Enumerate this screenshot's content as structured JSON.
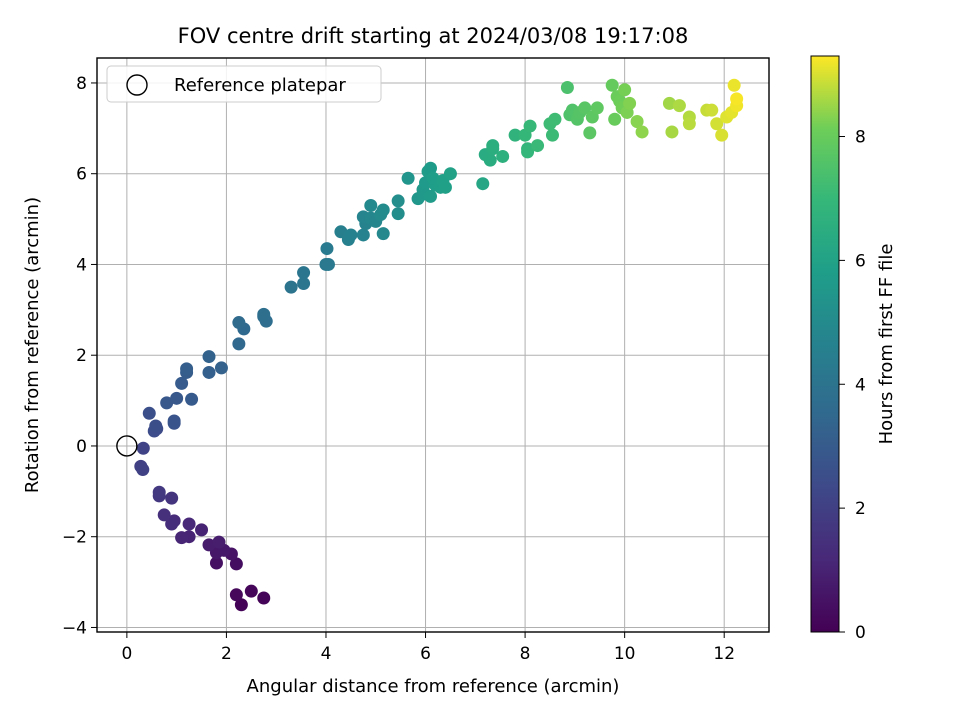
{
  "chart_data": {
    "type": "scatter",
    "title": "FOV centre drift starting at 2024/03/08 19:17:08",
    "xlabel": "Angular distance from reference (arcmin)",
    "ylabel": "Rotation from reference (arcmin)",
    "colorbar_label": "Hours from first FF file",
    "xlim": [
      -0.6,
      12.9
    ],
    "ylim": [
      -4.1,
      8.55
    ],
    "x_ticks": [
      0,
      2,
      4,
      6,
      8,
      10,
      12
    ],
    "y_ticks": [
      -4,
      -2,
      0,
      2,
      4,
      6,
      8
    ],
    "colorbar_range": [
      0,
      9.3
    ],
    "colorbar_ticks": [
      0,
      2,
      4,
      6,
      8
    ],
    "colormap": "viridis",
    "grid": true,
    "legend_placement": "top-left",
    "reference": {
      "name": "Reference platepar",
      "x": 0,
      "y": 0
    },
    "points": [
      {
        "x": 2.3,
        "y": -3.5,
        "t": 0.05
      },
      {
        "x": 2.75,
        "y": -3.35,
        "t": 0.1
      },
      {
        "x": 2.5,
        "y": -3.2,
        "t": 0.15
      },
      {
        "x": 2.2,
        "y": -3.28,
        "t": 0.2
      },
      {
        "x": 2.2,
        "y": -2.6,
        "t": 0.35
      },
      {
        "x": 1.8,
        "y": -2.58,
        "t": 0.45
      },
      {
        "x": 2.1,
        "y": -2.38,
        "t": 0.55
      },
      {
        "x": 1.8,
        "y": -2.35,
        "t": 0.65
      },
      {
        "x": 1.95,
        "y": -2.3,
        "t": 0.7
      },
      {
        "x": 1.65,
        "y": -2.18,
        "t": 0.8
      },
      {
        "x": 1.85,
        "y": -2.12,
        "t": 0.85
      },
      {
        "x": 1.5,
        "y": -1.85,
        "t": 1.0
      },
      {
        "x": 1.25,
        "y": -2.0,
        "t": 1.05
      },
      {
        "x": 1.1,
        "y": -2.02,
        "t": 1.1
      },
      {
        "x": 1.25,
        "y": -1.72,
        "t": 1.2
      },
      {
        "x": 0.95,
        "y": -1.65,
        "t": 1.3
      },
      {
        "x": 0.9,
        "y": -1.72,
        "t": 1.35
      },
      {
        "x": 0.75,
        "y": -1.52,
        "t": 1.45
      },
      {
        "x": 0.9,
        "y": -1.15,
        "t": 1.6
      },
      {
        "x": 0.65,
        "y": -1.1,
        "t": 1.7
      },
      {
        "x": 0.65,
        "y": -1.02,
        "t": 1.75
      },
      {
        "x": 0.28,
        "y": -0.45,
        "t": 2.0
      },
      {
        "x": 0.32,
        "y": -0.52,
        "t": 2.05
      },
      {
        "x": 0.33,
        "y": -0.05,
        "t": 2.15
      },
      {
        "x": 0.6,
        "y": 0.38,
        "t": 2.4
      },
      {
        "x": 0.55,
        "y": 0.33,
        "t": 2.45
      },
      {
        "x": 0.58,
        "y": 0.44,
        "t": 2.5
      },
      {
        "x": 0.45,
        "y": 0.72,
        "t": 2.55
      },
      {
        "x": 0.95,
        "y": 0.5,
        "t": 2.7
      },
      {
        "x": 0.95,
        "y": 0.55,
        "t": 2.75
      },
      {
        "x": 0.8,
        "y": 0.95,
        "t": 2.85
      },
      {
        "x": 1.0,
        "y": 1.05,
        "t": 2.9
      },
      {
        "x": 1.3,
        "y": 1.03,
        "t": 2.95
      },
      {
        "x": 1.1,
        "y": 1.38,
        "t": 3.0
      },
      {
        "x": 1.2,
        "y": 1.62,
        "t": 3.05
      },
      {
        "x": 1.2,
        "y": 1.7,
        "t": 3.1
      },
      {
        "x": 1.65,
        "y": 1.62,
        "t": 3.2
      },
      {
        "x": 1.9,
        "y": 1.72,
        "t": 3.25
      },
      {
        "x": 1.65,
        "y": 1.97,
        "t": 3.3
      },
      {
        "x": 2.25,
        "y": 2.25,
        "t": 3.5
      },
      {
        "x": 2.35,
        "y": 2.58,
        "t": 3.55
      },
      {
        "x": 2.25,
        "y": 2.72,
        "t": 3.6
      },
      {
        "x": 2.75,
        "y": 2.85,
        "t": 3.7
      },
      {
        "x": 2.8,
        "y": 2.75,
        "t": 3.75
      },
      {
        "x": 2.75,
        "y": 2.9,
        "t": 3.78
      },
      {
        "x": 3.3,
        "y": 3.5,
        "t": 4.0
      },
      {
        "x": 3.55,
        "y": 3.58,
        "t": 4.05
      },
      {
        "x": 3.55,
        "y": 3.82,
        "t": 4.1
      },
      {
        "x": 4.0,
        "y": 4.0,
        "t": 4.2
      },
      {
        "x": 4.05,
        "y": 4.0,
        "t": 4.25
      },
      {
        "x": 4.02,
        "y": 4.35,
        "t": 4.3
      },
      {
        "x": 4.3,
        "y": 4.72,
        "t": 4.5
      },
      {
        "x": 4.45,
        "y": 4.55,
        "t": 4.55
      },
      {
        "x": 4.5,
        "y": 4.65,
        "t": 4.6
      },
      {
        "x": 4.75,
        "y": 4.65,
        "t": 4.65
      },
      {
        "x": 4.8,
        "y": 4.9,
        "t": 4.7
      },
      {
        "x": 4.75,
        "y": 5.05,
        "t": 4.75
      },
      {
        "x": 4.9,
        "y": 5.02,
        "t": 4.8
      },
      {
        "x": 5.0,
        "y": 4.95,
        "t": 4.85
      },
      {
        "x": 5.15,
        "y": 4.68,
        "t": 4.9
      },
      {
        "x": 4.9,
        "y": 5.3,
        "t": 4.95
      },
      {
        "x": 5.1,
        "y": 5.1,
        "t": 5.0
      },
      {
        "x": 5.15,
        "y": 5.2,
        "t": 5.02
      },
      {
        "x": 5.45,
        "y": 5.12,
        "t": 5.1
      },
      {
        "x": 5.45,
        "y": 5.4,
        "t": 5.15
      },
      {
        "x": 5.65,
        "y": 5.9,
        "t": 5.4
      },
      {
        "x": 5.85,
        "y": 5.45,
        "t": 5.5
      },
      {
        "x": 5.95,
        "y": 5.65,
        "t": 5.55
      },
      {
        "x": 5.95,
        "y": 5.55,
        "t": 5.6
      },
      {
        "x": 6.0,
        "y": 5.8,
        "t": 5.65
      },
      {
        "x": 6.1,
        "y": 5.5,
        "t": 5.7
      },
      {
        "x": 6.05,
        "y": 6.05,
        "t": 5.72
      },
      {
        "x": 6.1,
        "y": 6.12,
        "t": 5.75
      },
      {
        "x": 6.2,
        "y": 5.75,
        "t": 5.8
      },
      {
        "x": 6.15,
        "y": 5.9,
        "t": 5.82
      },
      {
        "x": 6.3,
        "y": 5.7,
        "t": 5.85
      },
      {
        "x": 6.35,
        "y": 5.85,
        "t": 5.9
      },
      {
        "x": 6.4,
        "y": 5.7,
        "t": 5.92
      },
      {
        "x": 6.5,
        "y": 6.0,
        "t": 5.95
      },
      {
        "x": 7.15,
        "y": 5.78,
        "t": 6.2
      },
      {
        "x": 7.2,
        "y": 6.42,
        "t": 6.4
      },
      {
        "x": 7.3,
        "y": 6.3,
        "t": 6.45
      },
      {
        "x": 7.35,
        "y": 6.55,
        "t": 6.5
      },
      {
        "x": 7.35,
        "y": 6.62,
        "t": 6.55
      },
      {
        "x": 7.55,
        "y": 6.38,
        "t": 6.6
      },
      {
        "x": 7.8,
        "y": 6.85,
        "t": 6.75
      },
      {
        "x": 8.05,
        "y": 6.55,
        "t": 6.85
      },
      {
        "x": 8.05,
        "y": 6.48,
        "t": 6.9
      },
      {
        "x": 8.0,
        "y": 6.85,
        "t": 6.95
      },
      {
        "x": 8.1,
        "y": 7.05,
        "t": 7.0
      },
      {
        "x": 8.25,
        "y": 6.62,
        "t": 7.05
      },
      {
        "x": 8.55,
        "y": 6.85,
        "t": 7.1
      },
      {
        "x": 8.5,
        "y": 7.1,
        "t": 7.15
      },
      {
        "x": 8.6,
        "y": 7.2,
        "t": 7.2
      },
      {
        "x": 8.85,
        "y": 7.9,
        "t": 7.45
      },
      {
        "x": 8.9,
        "y": 7.3,
        "t": 7.5
      },
      {
        "x": 8.95,
        "y": 7.4,
        "t": 7.55
      },
      {
        "x": 9.05,
        "y": 7.2,
        "t": 7.6
      },
      {
        "x": 9.1,
        "y": 7.35,
        "t": 7.65
      },
      {
        "x": 9.2,
        "y": 7.45,
        "t": 7.7
      },
      {
        "x": 9.3,
        "y": 6.9,
        "t": 7.75
      },
      {
        "x": 9.35,
        "y": 7.25,
        "t": 7.8
      },
      {
        "x": 9.45,
        "y": 7.45,
        "t": 7.85
      },
      {
        "x": 9.75,
        "y": 7.95,
        "t": 7.95
      },
      {
        "x": 9.8,
        "y": 7.2,
        "t": 8.0
      },
      {
        "x": 9.85,
        "y": 7.7,
        "t": 8.05
      },
      {
        "x": 9.9,
        "y": 7.6,
        "t": 8.1
      },
      {
        "x": 9.95,
        "y": 7.45,
        "t": 8.15
      },
      {
        "x": 10.0,
        "y": 7.85,
        "t": 8.2
      },
      {
        "x": 10.05,
        "y": 7.35,
        "t": 8.25
      },
      {
        "x": 10.1,
        "y": 7.55,
        "t": 8.3
      },
      {
        "x": 10.25,
        "y": 7.15,
        "t": 8.35
      },
      {
        "x": 10.35,
        "y": 6.92,
        "t": 8.4
      },
      {
        "x": 10.9,
        "y": 7.55,
        "t": 8.55
      },
      {
        "x": 10.95,
        "y": 6.92,
        "t": 8.6
      },
      {
        "x": 11.1,
        "y": 7.5,
        "t": 8.65
      },
      {
        "x": 11.3,
        "y": 7.25,
        "t": 8.7
      },
      {
        "x": 11.3,
        "y": 7.1,
        "t": 8.75
      },
      {
        "x": 11.65,
        "y": 7.4,
        "t": 8.85
      },
      {
        "x": 11.75,
        "y": 7.4,
        "t": 8.9
      },
      {
        "x": 11.85,
        "y": 7.1,
        "t": 8.95
      },
      {
        "x": 11.95,
        "y": 6.85,
        "t": 9.0
      },
      {
        "x": 12.05,
        "y": 7.25,
        "t": 9.05
      },
      {
        "x": 12.15,
        "y": 7.35,
        "t": 9.1
      },
      {
        "x": 12.2,
        "y": 7.95,
        "t": 9.15
      },
      {
        "x": 12.25,
        "y": 7.5,
        "t": 9.2
      },
      {
        "x": 12.25,
        "y": 7.65,
        "t": 9.25
      }
    ]
  }
}
